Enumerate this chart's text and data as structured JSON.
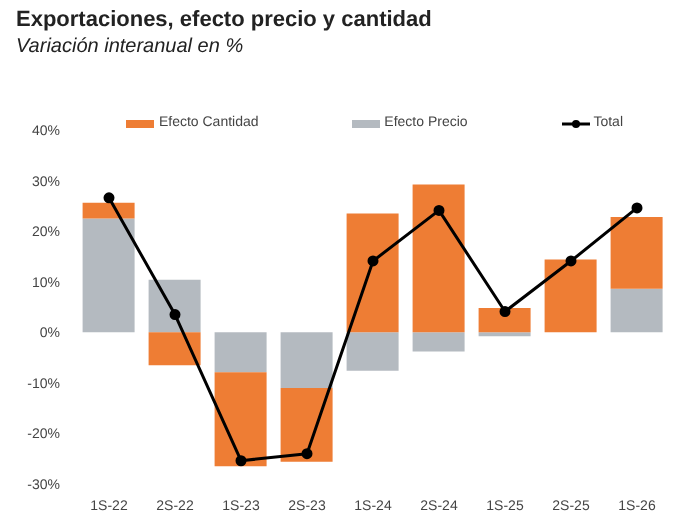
{
  "chart_data": {
    "type": "bar",
    "title": "Exportaciones, efecto precio y cantidad",
    "subtitle": "Variación interanual en %",
    "categories": [
      "1S-22",
      "2S-22",
      "1S-23",
      "2S-23",
      "1S-24",
      "2S-24",
      "1S-25",
      "2S-25",
      "1S-26"
    ],
    "stacked": true,
    "series": [
      {
        "name": "Efecto Precio",
        "color": "#b4bac0",
        "values": [
          22.5,
          10.4,
          -7.9,
          -11,
          -7.6,
          -3.8,
          -0.8,
          null,
          8.6
        ]
      },
      {
        "name": "Efecto Cantidad",
        "color": "#ee7d34",
        "values": [
          3.1,
          -6.5,
          -18.6,
          -14.6,
          23.5,
          29.2,
          4.8,
          14.4,
          14.2
        ]
      },
      {
        "name": "Total",
        "type": "line",
        "color": "#000000",
        "marker": "circle",
        "values": [
          26.6,
          3.5,
          -25.4,
          -24,
          14.1,
          24.1,
          4.1,
          14.1,
          24.6
        ]
      }
    ],
    "ylim": [
      -30,
      40
    ],
    "yticks": [
      {
        "value": -30,
        "label": "-30%"
      },
      {
        "value": -20,
        "label": "-20%"
      },
      {
        "value": -10,
        "label": "-10%"
      },
      {
        "value": 0,
        "label": "0%"
      },
      {
        "value": 10,
        "label": "10%"
      },
      {
        "value": 20,
        "label": "20%"
      },
      {
        "value": 30,
        "label": "30%"
      },
      {
        "value": 40,
        "label": "40%"
      }
    ],
    "legend": "top"
  }
}
